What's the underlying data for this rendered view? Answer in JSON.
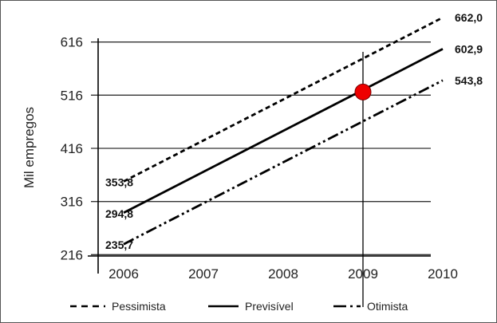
{
  "chart_data": {
    "type": "line",
    "xlabel": "",
    "ylabel": "Mil empregos",
    "x": [
      2006,
      2010
    ],
    "xticks": [
      "2006",
      "2007",
      "2008",
      "2009",
      "2010"
    ],
    "xlim": [
      2005.65,
      2010.05
    ],
    "yticks": [
      "216",
      "316",
      "416",
      "516",
      "616"
    ],
    "ylim": [
      185,
      665
    ],
    "grid": "horizontal",
    "series": [
      {
        "name": "Pessimista",
        "style": "dashed",
        "values": [
          353.8,
          662.0
        ],
        "start_label": "353,8",
        "end_label": "662,0"
      },
      {
        "name": "Previsível",
        "style": "solid",
        "values": [
          294.8,
          602.9
        ],
        "start_label": "294,8",
        "end_label": "602,9"
      },
      {
        "name": "Otimista",
        "style": "dash-dot-dot",
        "values": [
          235.7,
          543.8
        ],
        "start_label": "235,7",
        "end_label": "543,8"
      }
    ],
    "vline_x": 2009,
    "highlight": {
      "x": 2009,
      "y": 522,
      "color": "#ee0000"
    },
    "legend_position": "bottom",
    "colors": {
      "line": "#000000",
      "grid": "#333333",
      "marker": "#ee0000"
    }
  }
}
